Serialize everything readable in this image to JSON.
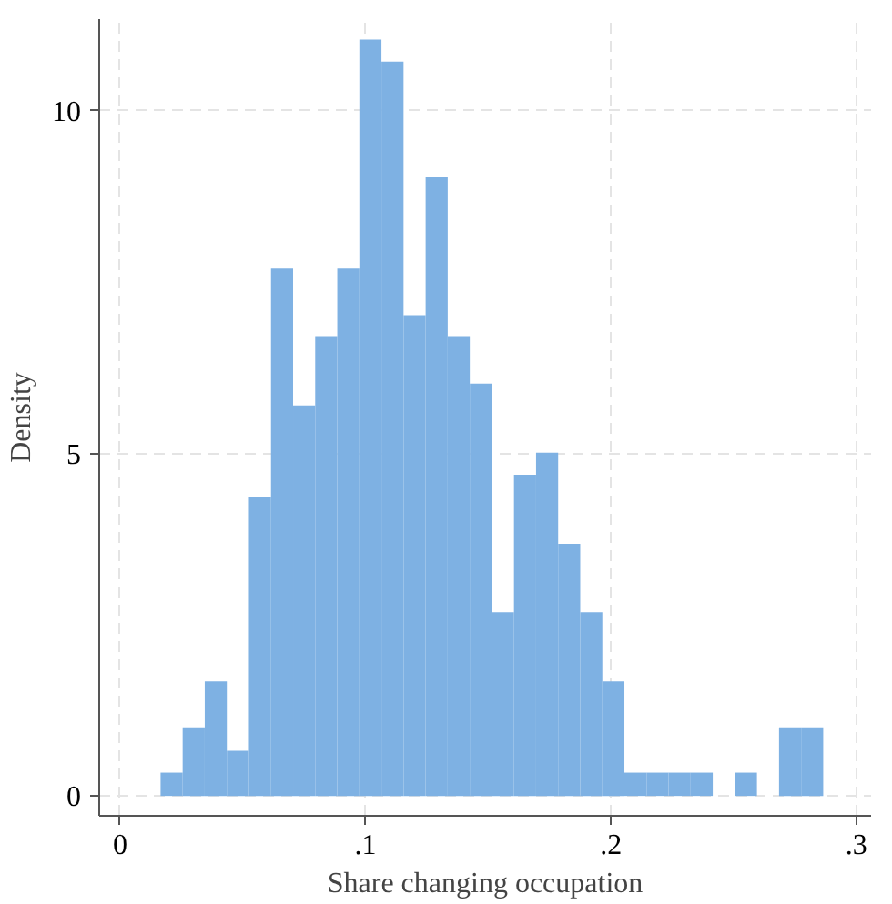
{
  "chart_data": {
    "type": "histogram",
    "xlabel": "Share changing occupation",
    "ylabel": "Density",
    "bins": [
      0.0165,
      0.0255,
      0.0345,
      0.0435,
      0.0525,
      0.0615,
      0.0705,
      0.0795,
      0.0885,
      0.0975,
      0.1065,
      0.1155,
      0.1245,
      0.1335,
      0.1425,
      0.1515,
      0.1605,
      0.1695,
      0.1785,
      0.1875,
      0.1965,
      0.2055,
      0.2145,
      0.2235,
      0.2325,
      0.2415,
      0.2505,
      0.2595,
      0.2685,
      0.2775,
      0.2865
    ],
    "values": [
      0.34,
      1.0,
      1.67,
      0.66,
      4.36,
      7.7,
      5.7,
      6.7,
      7.7,
      11.04,
      10.72,
      7.02,
      9.03,
      6.7,
      6.02,
      2.68,
      4.69,
      5.01,
      3.68,
      2.68,
      1.67,
      0.34,
      0.34,
      0.34,
      0.34,
      0,
      0.34,
      0,
      1.0,
      1.0
    ],
    "color": "#7eb1e3",
    "xlim": [
      -0.0085,
      0.306
    ],
    "ylim": [
      -0.29,
      11.34
    ],
    "xticks": [
      0,
      {
        "value": 0.1,
        "label": ".1"
      },
      {
        "value": 0.2,
        "label": ".2"
      },
      {
        "value": 0.3,
        "label": ".3"
      }
    ],
    "yticks": [
      0,
      5,
      10
    ],
    "grid": true
  }
}
